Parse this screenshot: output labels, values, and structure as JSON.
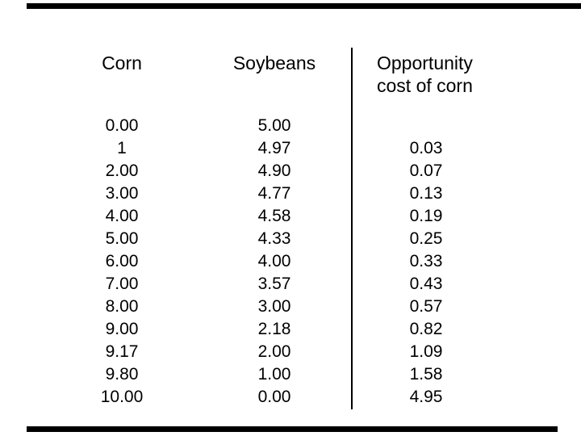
{
  "page": {
    "background_color": "#ffffff",
    "text_color": "#000000",
    "edge_bar_color": "#000000"
  },
  "table": {
    "headers": {
      "corn": "Corn",
      "soybeans": "Soybeans",
      "opportunity_line1": "Opportunity",
      "opportunity_line2": "cost of corn"
    },
    "corn": [
      "0.00",
      "1",
      "2.00",
      "3.00",
      "4.00",
      "5.00",
      "6.00",
      "7.00",
      "8.00",
      "9.00",
      "9.17",
      "9.80",
      "10.00"
    ],
    "soybeans": [
      "5.00",
      "4.97",
      "4.90",
      "4.77",
      "4.58",
      "4.33",
      "4.00",
      "3.57",
      "3.00",
      "2.18",
      "2.00",
      "1.00",
      "0.00"
    ],
    "opportunity_cost": [
      "",
      "0.03",
      "0.07",
      "0.13",
      "0.19",
      "0.25",
      "0.33",
      "0.43",
      "0.57",
      "0.82",
      "1.09",
      "1.58",
      "4.95"
    ]
  }
}
